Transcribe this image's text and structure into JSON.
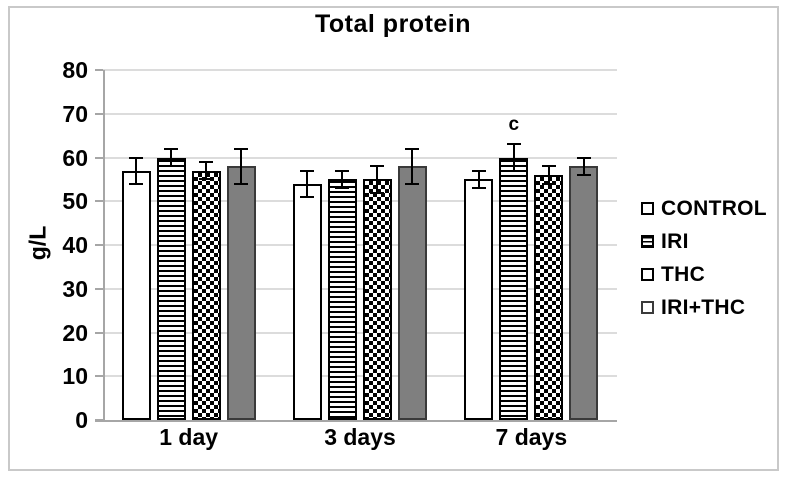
{
  "chart_data": {
    "type": "bar",
    "title": "Total protein",
    "ylabel": "g/L",
    "xlabel": "",
    "ylim": [
      0,
      80
    ],
    "yticks": [
      0,
      10,
      20,
      30,
      40,
      50,
      60,
      70,
      80
    ],
    "grid": true,
    "legend_position": "right",
    "categories": [
      "1 day",
      "3 days",
      "7 days"
    ],
    "series": [
      {
        "name": "CONTROL",
        "pattern": "plain",
        "values": [
          57,
          54,
          55
        ],
        "errors": [
          3,
          3,
          2
        ]
      },
      {
        "name": "IRI",
        "pattern": "hstripes",
        "values": [
          60,
          55,
          60
        ],
        "errors": [
          2,
          2,
          3
        ]
      },
      {
        "name": "THC",
        "pattern": "checker",
        "values": [
          57,
          55,
          56
        ],
        "errors": [
          2,
          3,
          2
        ]
      },
      {
        "name": "IRI+THC",
        "pattern": "gray",
        "values": [
          58,
          58,
          58
        ],
        "errors": [
          4,
          4,
          2
        ]
      }
    ],
    "annotations": [
      {
        "text": "c",
        "category_index": 2,
        "series_index": 1
      }
    ],
    "colors": {
      "gray_fill": "#7f7f7f",
      "bar_border": "#000000",
      "gridline": "#dcdcdc",
      "axis": "#a6a6a6",
      "text": "#000000",
      "background": "#ffffff",
      "figure_border": "#c9c9c9"
    }
  }
}
